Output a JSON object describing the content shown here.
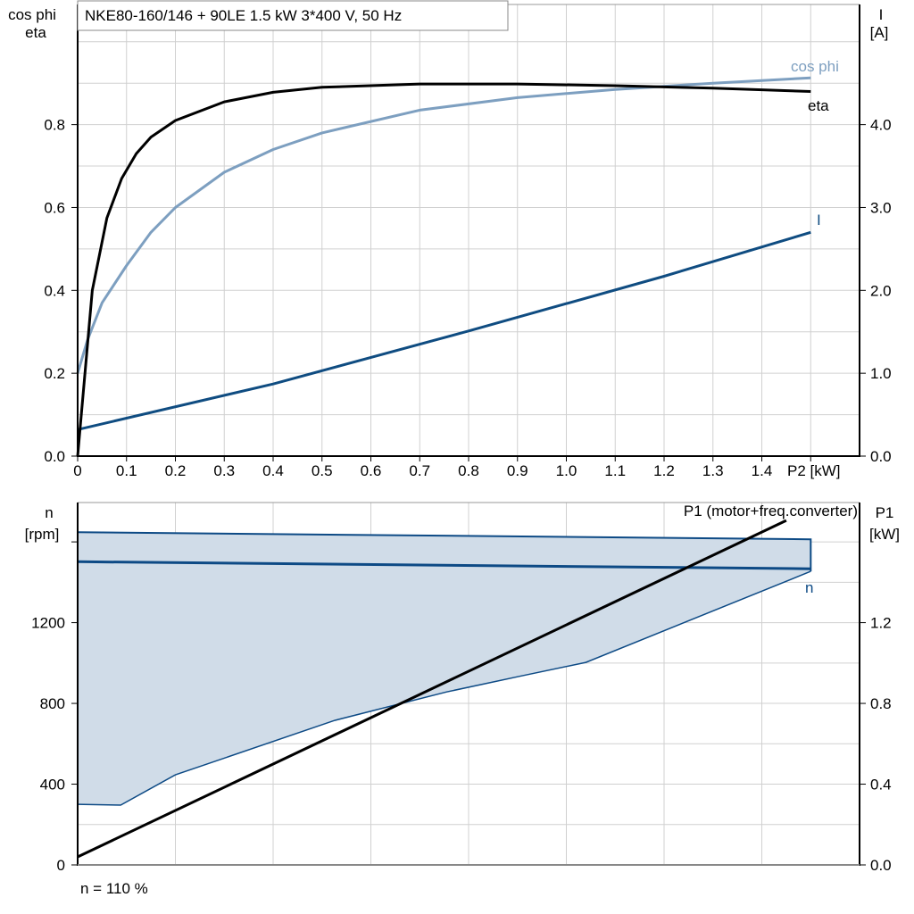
{
  "title": "NKE80-160/146 + 90LE   1.5 kW   3*400 V, 50 Hz",
  "footer": "n = 110 %",
  "colors": {
    "eta": "#000000",
    "cos_phi": "#7d9fc0",
    "current": "#0f4c81",
    "speed": "#0d4a85",
    "speed_fill": "#d0dce8",
    "p1": "#000000",
    "grid": "#d0d0d0"
  },
  "chart_data": [
    {
      "type": "line",
      "ylabel_left": [
        "cos phi",
        "eta"
      ],
      "ylabel_right": [
        "I",
        "[A]"
      ],
      "xlabel": "P2 [kW]",
      "xlim": [
        0,
        1.6
      ],
      "ylim_left": [
        0,
        1.09
      ],
      "ylim_right": [
        0,
        5.45
      ],
      "grid": true,
      "x_ticks": [
        "0",
        "0.1",
        "0.2",
        "0.3",
        "0.4",
        "0.5",
        "0.6",
        "0.7",
        "0.8",
        "0.9",
        "1.0",
        "1.1",
        "1.2",
        "1.3",
        "1.4"
      ],
      "y_ticks_left": [
        "0.0",
        "0.2",
        "0.4",
        "0.6",
        "0.8"
      ],
      "y_ticks_right": [
        "0.0",
        "1.0",
        "2.0",
        "3.0",
        "4.0"
      ],
      "series": [
        {
          "name": "eta",
          "axis": "left",
          "x": [
            0,
            0.03,
            0.06,
            0.09,
            0.12,
            0.15,
            0.2,
            0.3,
            0.4,
            0.5,
            0.7,
            0.9,
            1.1,
            1.3,
            1.5
          ],
          "y": [
            0,
            0.4,
            0.575,
            0.67,
            0.73,
            0.77,
            0.81,
            0.855,
            0.878,
            0.89,
            0.898,
            0.898,
            0.894,
            0.888,
            0.88
          ]
        },
        {
          "name": "cos phi",
          "axis": "left",
          "x": [
            0,
            0.02,
            0.05,
            0.1,
            0.15,
            0.2,
            0.3,
            0.4,
            0.5,
            0.7,
            0.9,
            1.1,
            1.3,
            1.5
          ],
          "y": [
            0.2,
            0.28,
            0.37,
            0.46,
            0.54,
            0.6,
            0.685,
            0.74,
            0.78,
            0.835,
            0.865,
            0.885,
            0.9,
            0.913
          ]
        },
        {
          "name": "I",
          "axis": "right",
          "x": [
            0,
            0.4,
            0.8,
            1.2,
            1.5
          ],
          "y": [
            0.32,
            0.87,
            1.51,
            2.17,
            2.7
          ]
        }
      ]
    },
    {
      "type": "area",
      "ylabel_left": [
        "n",
        "[rpm]"
      ],
      "ylabel_right": [
        "P1",
        "[kW]"
      ],
      "xlim": [
        0,
        1.6
      ],
      "ylim_left": [
        0,
        1795
      ],
      "ylim_right": [
        0,
        1.795
      ],
      "grid": true,
      "y_ticks_left": [
        "0",
        "400",
        "800",
        "1200"
      ],
      "y_ticks_right": [
        "0.0",
        "0.4",
        "0.8",
        "1.2"
      ],
      "series": [
        {
          "name": "n",
          "axis": "left",
          "kind": "range",
          "upper": {
            "x": [
              0,
              1.5
            ],
            "y": [
              1648,
              1613
            ]
          },
          "nominal": {
            "x": [
              0,
              1.5
            ],
            "y": [
              1502,
              1467
            ]
          },
          "lower": {
            "x": [
              0,
              0.088,
              0.2,
              0.526,
              0.755,
              0.9,
              1.04,
              1.5
            ],
            "y": [
              300,
              296,
              446,
              716,
              857,
              932,
              1003,
              1454
            ]
          }
        },
        {
          "name": "P1 (motor+freq.converter)",
          "axis": "right",
          "x": [
            0,
            1.45
          ],
          "y": [
            0.04,
            1.706
          ]
        }
      ]
    }
  ]
}
